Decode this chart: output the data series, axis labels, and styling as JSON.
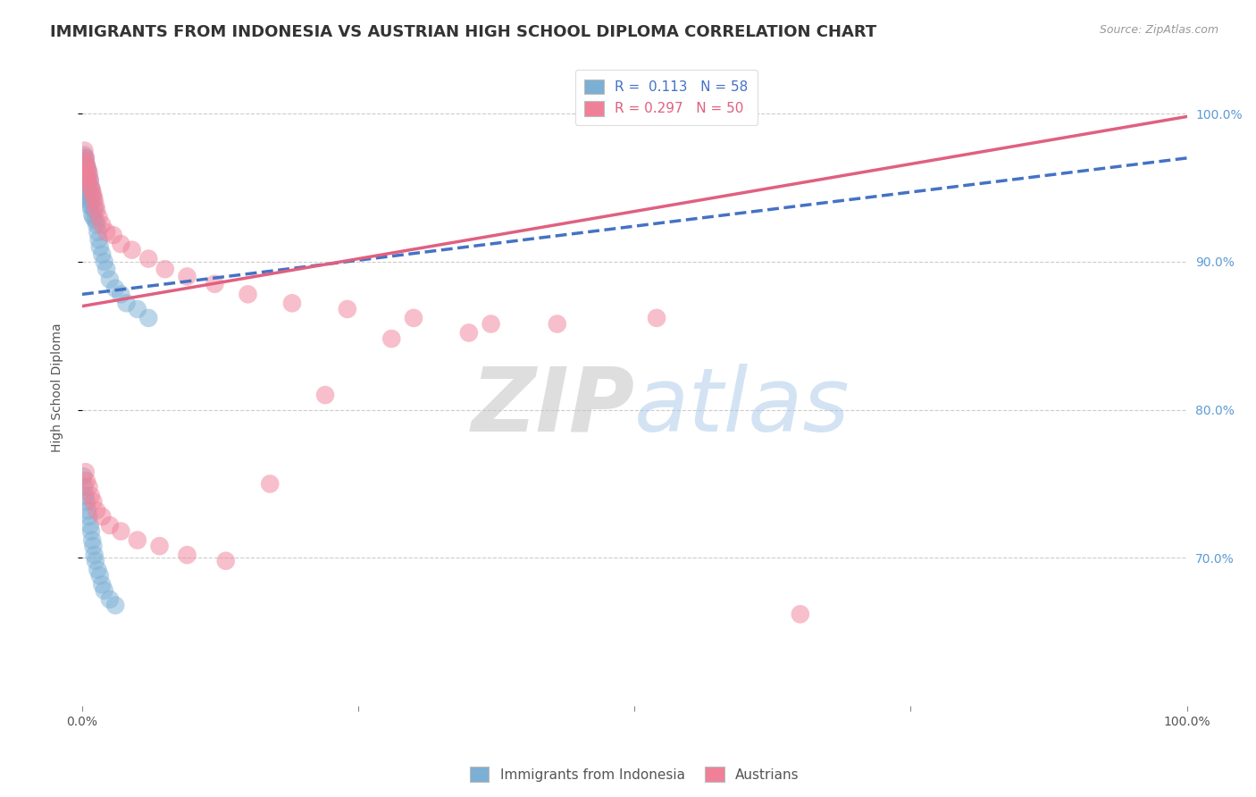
{
  "title": "IMMIGRANTS FROM INDONESIA VS AUSTRIAN HIGH SCHOOL DIPLOMA CORRELATION CHART",
  "source": "Source: ZipAtlas.com",
  "ylabel_left": "High School Diploma",
  "r_blue": 0.113,
  "n_blue": 58,
  "r_pink": 0.297,
  "n_pink": 50,
  "watermark_zip": "ZIP",
  "watermark_atlas": "atlas",
  "background_color": "#ffffff",
  "grid_color": "#cccccc",
  "blue_color": "#7bafd4",
  "pink_color": "#f08098",
  "blue_line_color": "#4472c4",
  "pink_line_color": "#e06080",
  "title_fontsize": 13,
  "axis_label_fontsize": 10,
  "tick_fontsize": 10,
  "legend_fontsize": 11,
  "right_tick_color": "#5b9bd5",
  "blue_x": [
    0.001,
    0.001,
    0.002,
    0.002,
    0.002,
    0.003,
    0.003,
    0.003,
    0.004,
    0.004,
    0.004,
    0.005,
    0.005,
    0.005,
    0.006,
    0.006,
    0.006,
    0.007,
    0.007,
    0.008,
    0.008,
    0.009,
    0.009,
    0.01,
    0.01,
    0.011,
    0.012,
    0.013,
    0.014,
    0.015,
    0.016,
    0.018,
    0.02,
    0.022,
    0.025,
    0.03,
    0.035,
    0.04,
    0.05,
    0.06,
    0.001,
    0.002,
    0.003,
    0.004,
    0.005,
    0.006,
    0.007,
    0.008,
    0.009,
    0.01,
    0.011,
    0.012,
    0.014,
    0.016,
    0.018,
    0.02,
    0.025,
    0.03
  ],
  "blue_y": [
    0.968,
    0.96,
    0.972,
    0.963,
    0.955,
    0.97,
    0.958,
    0.948,
    0.965,
    0.955,
    0.945,
    0.962,
    0.952,
    0.942,
    0.958,
    0.948,
    0.938,
    0.955,
    0.942,
    0.95,
    0.938,
    0.945,
    0.932,
    0.942,
    0.93,
    0.935,
    0.928,
    0.925,
    0.92,
    0.915,
    0.91,
    0.905,
    0.9,
    0.895,
    0.888,
    0.882,
    0.878,
    0.872,
    0.868,
    0.862,
    0.755,
    0.748,
    0.742,
    0.738,
    0.732,
    0.728,
    0.722,
    0.718,
    0.712,
    0.708,
    0.702,
    0.698,
    0.692,
    0.688,
    0.682,
    0.678,
    0.672,
    0.668
  ],
  "pink_x": [
    0.002,
    0.003,
    0.003,
    0.004,
    0.004,
    0.005,
    0.005,
    0.006,
    0.007,
    0.008,
    0.009,
    0.01,
    0.011,
    0.012,
    0.013,
    0.015,
    0.018,
    0.022,
    0.028,
    0.035,
    0.045,
    0.06,
    0.075,
    0.095,
    0.12,
    0.15,
    0.19,
    0.24,
    0.3,
    0.37,
    0.003,
    0.004,
    0.006,
    0.008,
    0.01,
    0.013,
    0.018,
    0.025,
    0.035,
    0.05,
    0.07,
    0.095,
    0.13,
    0.17,
    0.22,
    0.28,
    0.35,
    0.43,
    0.52,
    0.65
  ],
  "pink_y": [
    0.975,
    0.97,
    0.968,
    0.965,
    0.958,
    0.962,
    0.955,
    0.96,
    0.955,
    0.95,
    0.948,
    0.945,
    0.942,
    0.938,
    0.935,
    0.93,
    0.925,
    0.92,
    0.918,
    0.912,
    0.908,
    0.902,
    0.895,
    0.89,
    0.885,
    0.878,
    0.872,
    0.868,
    0.862,
    0.858,
    0.758,
    0.752,
    0.748,
    0.742,
    0.738,
    0.732,
    0.728,
    0.722,
    0.718,
    0.712,
    0.708,
    0.702,
    0.698,
    0.75,
    0.81,
    0.848,
    0.852,
    0.858,
    0.862,
    0.662
  ],
  "blue_line_x": [
    0.0,
    1.0
  ],
  "blue_line_y": [
    0.878,
    0.97
  ],
  "pink_line_x": [
    0.0,
    1.0
  ],
  "pink_line_y": [
    0.87,
    0.998
  ],
  "xlim": [
    0.0,
    1.0
  ],
  "ylim": [
    0.6,
    1.03
  ],
  "yticks": [
    0.7,
    0.8,
    0.9,
    1.0
  ]
}
